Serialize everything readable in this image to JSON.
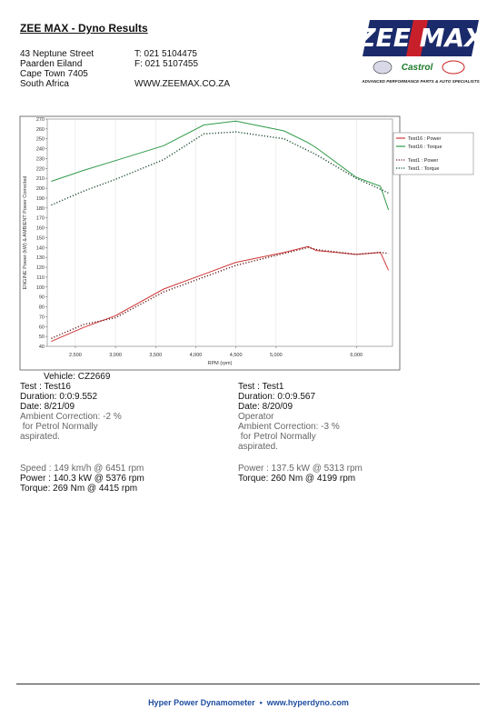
{
  "header": {
    "title": "ZEE MAX - Dyno Results",
    "address": [
      "43 Neptune Street",
      "Paarden Eiland",
      "Cape Town 7405",
      "South Africa"
    ],
    "phone": "T: 021 5104475",
    "fax": "F: 021 5107455",
    "website": "WWW.ZEEMAX.CO.ZA",
    "logo": "ZEE MAX",
    "sponsors": [
      "Castrol"
    ],
    "tagline": "ADVANCED PERFORMANCE PARTS & AUTO SPECIALISTS"
  },
  "chart_data": {
    "type": "line",
    "x_label": "RPM (rpm)",
    "y_label": "ENGINE Power (kW) & AMBIENT Power Corrected",
    "x": [
      2200,
      2600,
      3000,
      3600,
      4100,
      4500,
      5100,
      5400,
      5500,
      6000,
      6300,
      6400
    ],
    "series": [
      {
        "name": "Test16 : Power",
        "color": "#d03838",
        "dashed": false,
        "values": [
          45,
          59,
          71,
          98,
          113,
          125,
          135,
          141,
          137,
          133,
          135,
          117
        ]
      },
      {
        "name": "Test16 : Torque",
        "color": "#2f9a48",
        "dashed": false,
        "values": [
          207,
          218,
          228,
          243,
          264,
          268,
          258,
          246,
          241,
          211,
          202,
          178
        ]
      },
      {
        "name": "Test1 : Power",
        "color": "#6a1c1c",
        "dashed": true,
        "values": [
          48,
          62,
          69,
          95,
          110,
          122,
          134,
          140,
          138,
          133,
          135,
          134
        ]
      },
      {
        "name": "Test1 : Torque",
        "color": "#1b4a2c",
        "dashed": true,
        "values": [
          183,
          197,
          209,
          229,
          255,
          257,
          250,
          238,
          234,
          210,
          199,
          195
        ]
      }
    ],
    "xlim": [
      2150,
      6450
    ],
    "ylim": [
      40,
      270
    ],
    "xticks": [
      {
        "value": 2500,
        "label": "2,500"
      },
      {
        "value": 3000,
        "label": "3,000"
      },
      {
        "value": 3500,
        "label": "3,500"
      },
      {
        "value": 4000,
        "label": "4,000"
      },
      {
        "value": 4500,
        "label": "4,500"
      },
      {
        "value": 5000,
        "label": "5,000"
      },
      {
        "value": 6000,
        "label": "6,000"
      }
    ],
    "yticks": [
      40,
      50,
      60,
      70,
      80,
      90,
      100,
      110,
      120,
      130,
      140,
      150,
      160,
      170,
      180,
      190,
      200,
      210,
      220,
      230,
      240,
      250,
      260,
      270
    ],
    "grid": true,
    "legend": "right"
  },
  "vehicle": "Vehicle: CZ2669",
  "tests": [
    {
      "lines": [
        "Test : Test16",
        "Duration: 0:0:9.552",
        "Date: 8/21/09",
        "Ambient Correction: -2 %",
        " for Petrol Normally",
        "aspirated."
      ],
      "results": [
        "Speed : 149 km/h @ 6451 rpm",
        "Power : 140.3 kW @ 5376 rpm",
        "Torque: 269 Nm @ 4415 rpm"
      ]
    },
    {
      "lines": [
        "Test : Test1",
        "Duration: 0:0:9.567",
        "Date: 8/20/09",
        "Operator",
        "Ambient Correction: -3 %",
        " for Petrol Normally",
        "aspirated."
      ],
      "results": [
        "Power : 137.5 kW @ 5313 rpm",
        "Torque: 260 Nm @ 4199 rpm"
      ]
    }
  ],
  "footer": "Hyper Power Dynamometer  •  www.hyperdyno.com"
}
